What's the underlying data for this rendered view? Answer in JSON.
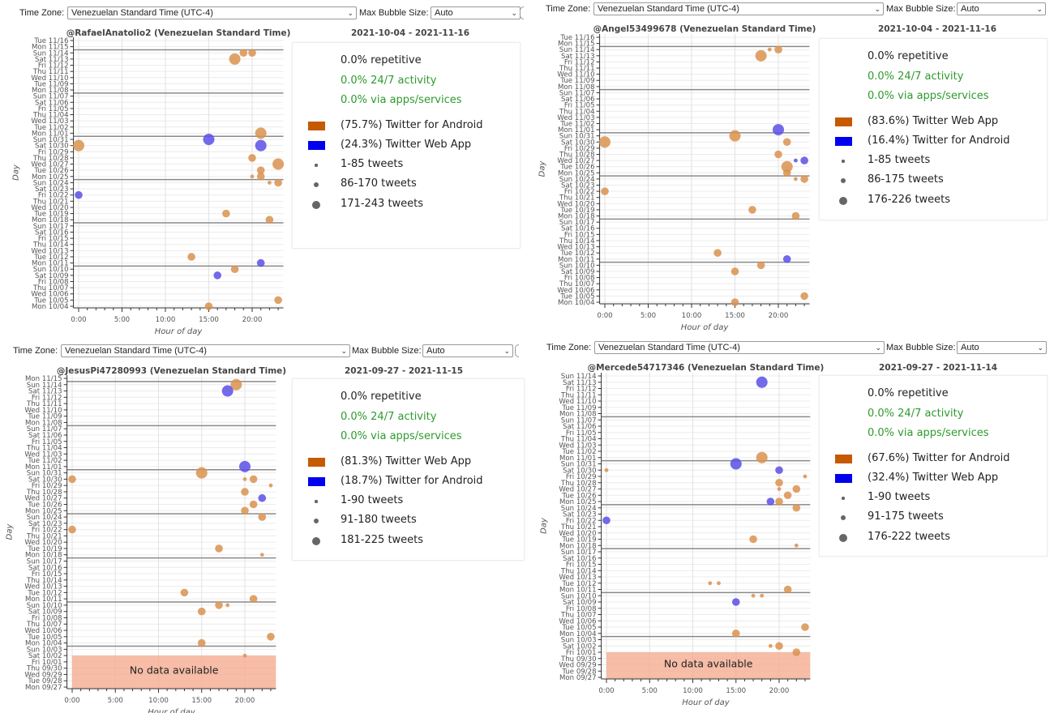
{
  "panels": [
    {
      "toolbar": {
        "timezone_label": "Time Zone:",
        "timezone_value": "Venezuelan Standard Time (UTC-4)",
        "bubble_label": "Max Bubble Size:",
        "bubble_value": "Auto"
      },
      "date_range": "2021-10-04 - 2021-11-16",
      "legend": {
        "stats": [
          {
            "text": "0.0% repetitive",
            "color": "#222222"
          },
          {
            "text": "0.0% 24/7 activity",
            "color": "#2e9a2e"
          },
          {
            "text": "0.0% via apps/services",
            "color": "#2e9a2e"
          }
        ],
        "sources": [
          {
            "label": "(75.7%) Twitter for Android",
            "color": "#c55a00"
          },
          {
            "label": "(24.3%) Twitter Web App",
            "color": "#0000ee"
          }
        ],
        "sizes": [
          "1-85 tweets",
          "86-170 tweets",
          "171-243 tweets"
        ]
      }
    },
    {
      "toolbar": {
        "timezone_label": "Time Zone:",
        "timezone_value": "Venezuelan Standard Time (UTC-4)",
        "bubble_label": "Max Bubble Size:",
        "bubble_value": "Auto"
      },
      "date_range": "2021-10-04 - 2021-11-16",
      "legend": {
        "stats": [
          {
            "text": "0.0% repetitive",
            "color": "#222222"
          },
          {
            "text": "0.0% 24/7 activity",
            "color": "#2e9a2e"
          },
          {
            "text": "0.0% via apps/services",
            "color": "#2e9a2e"
          }
        ],
        "sources": [
          {
            "label": "(83.6%) Twitter Web App",
            "color": "#c55a00"
          },
          {
            "label": "(16.4%) Twitter for Android",
            "color": "#0000ee"
          }
        ],
        "sizes": [
          "1-85 tweets",
          "86-175 tweets",
          "176-226 tweets"
        ]
      }
    },
    {
      "toolbar": {
        "timezone_label": "Time Zone:",
        "timezone_value": "Venezuelan Standard Time (UTC-4)",
        "bubble_label": "Max Bubble Size:",
        "bubble_value": "Auto"
      },
      "date_range": "2021-09-27 - 2021-11-15",
      "legend": {
        "stats": [
          {
            "text": "0.0% repetitive",
            "color": "#222222"
          },
          {
            "text": "0.0% 24/7 activity",
            "color": "#2e9a2e"
          },
          {
            "text": "0.0% via apps/services",
            "color": "#2e9a2e"
          }
        ],
        "sources": [
          {
            "label": "(81.3%) Twitter Web App",
            "color": "#c55a00"
          },
          {
            "label": "(18.7%) Twitter for Android",
            "color": "#0000ee"
          }
        ],
        "sizes": [
          "1-90 tweets",
          "91-180 tweets",
          "181-225 tweets"
        ]
      }
    },
    {
      "toolbar": {
        "timezone_label": "Time Zone:",
        "timezone_value": "Venezuelan Standard Time (UTC-4)",
        "bubble_label": "Max Bubble Size:",
        "bubble_value": "Auto"
      },
      "date_range": "2021-09-27 - 2021-11-14",
      "legend": {
        "stats": [
          {
            "text": "0.0% repetitive",
            "color": "#222222"
          },
          {
            "text": "0.0% 24/7 activity",
            "color": "#2e9a2e"
          },
          {
            "text": "0.0% via apps/services",
            "color": "#2e9a2e"
          }
        ],
        "sources": [
          {
            "label": "(67.6%) Twitter for Android",
            "color": "#c55a00"
          },
          {
            "label": "(32.4%) Twitter Web App",
            "color": "#0000ee"
          }
        ],
        "sizes": [
          "1-90 tweets",
          "91-175 tweets",
          "176-222 tweets"
        ]
      }
    }
  ],
  "chart_data": [
    {
      "type": "scatter",
      "title": "@RafaelAnatolio2 (Venezuelan Standard Time)",
      "xlabel": "Hour of day",
      "ylabel": "Day",
      "x_ticks": [
        "0:00",
        "5:00",
        "10:00",
        "15:00",
        "20:00"
      ],
      "xlim": [
        -0.6,
        23.6
      ],
      "point_format": [
        "day",
        "hour",
        "size_class(1-3)",
        "source_index"
      ],
      "y_categories": [
        "Mon 10/04",
        "Tue 10/05",
        "Wed 10/06",
        "Thu 10/07",
        "Fri 10/08",
        "Sat 10/09",
        "Sun 10/10",
        "Mon 10/11",
        "Tue 10/12",
        "Wed 10/13",
        "Thu 10/14",
        "Fri 10/15",
        "Sat 10/16",
        "Sun 10/17",
        "Mon 10/18",
        "Tue 10/19",
        "Wed 10/20",
        "Thu 10/21",
        "Fri 10/22",
        "Sat 10/23",
        "Sun 10/24",
        "Mon 10/25",
        "Tue 10/26",
        "Wed 10/27",
        "Thu 10/28",
        "Fri 10/29",
        "Sat 10/30",
        "Sun 10/31",
        "Mon 11/01",
        "Tue 11/02",
        "Wed 11/03",
        "Thu 11/04",
        "Fri 11/05",
        "Sat 11/06",
        "Sun 11/07",
        "Mon 11/08",
        "Tue 11/09",
        "Wed 11/10",
        "Thu 11/11",
        "Fri 11/12",
        "Sat 11/13",
        "Sun 11/14",
        "Mon 11/15",
        "Tue 11/16"
      ],
      "points": [
        [
          "11/14",
          19,
          2,
          0
        ],
        [
          "11/14",
          20,
          2,
          0
        ],
        [
          "11/13",
          18,
          3,
          0
        ],
        [
          "11/01",
          21,
          3,
          0
        ],
        [
          "10/31",
          15,
          3,
          1
        ],
        [
          "10/30",
          0,
          3,
          0
        ],
        [
          "10/30",
          21,
          3,
          1
        ],
        [
          "10/28",
          20,
          2,
          0
        ],
        [
          "10/27",
          23,
          3,
          0
        ],
        [
          "10/26",
          21,
          2,
          0
        ],
        [
          "10/25",
          20,
          1,
          0
        ],
        [
          "10/25",
          21,
          2,
          0
        ],
        [
          "10/24",
          22,
          1,
          0
        ],
        [
          "10/24",
          23,
          2,
          0
        ],
        [
          "10/22",
          0,
          2,
          1
        ],
        [
          "10/19",
          17,
          2,
          0
        ],
        [
          "10/18",
          22,
          2,
          0
        ],
        [
          "10/12",
          13,
          2,
          0
        ],
        [
          "10/11",
          21,
          2,
          1
        ],
        [
          "10/10",
          18,
          2,
          0
        ],
        [
          "10/09",
          16,
          2,
          1
        ],
        [
          "10/05",
          23,
          2,
          0
        ],
        [
          "10/04",
          15,
          2,
          0
        ]
      ]
    },
    {
      "type": "scatter",
      "title": "@Angel53499678 (Venezuelan Standard Time)",
      "xlabel": "Hour of day",
      "ylabel": "Day",
      "x_ticks": [
        "0:00",
        "5:00",
        "10:00",
        "15:00",
        "20:00"
      ],
      "xlim": [
        -0.6,
        23.6
      ],
      "point_format": [
        "day",
        "hour",
        "size_class(1-3)",
        "source_index"
      ],
      "y_categories": [
        "Mon 10/04",
        "Tue 10/05",
        "Wed 10/06",
        "Thu 10/07",
        "Fri 10/08",
        "Sat 10/09",
        "Sun 10/10",
        "Mon 10/11",
        "Tue 10/12",
        "Wed 10/13",
        "Thu 10/14",
        "Fri 10/15",
        "Sat 10/16",
        "Sun 10/17",
        "Mon 10/18",
        "Tue 10/19",
        "Wed 10/20",
        "Thu 10/21",
        "Fri 10/22",
        "Sat 10/23",
        "Sun 10/24",
        "Mon 10/25",
        "Tue 10/26",
        "Wed 10/27",
        "Thu 10/28",
        "Fri 10/29",
        "Sat 10/30",
        "Sun 10/31",
        "Mon 11/01",
        "Tue 11/02",
        "Wed 11/03",
        "Thu 11/04",
        "Fri 11/05",
        "Sat 11/06",
        "Sun 11/07",
        "Mon 11/08",
        "Tue 11/09",
        "Wed 11/10",
        "Thu 11/11",
        "Fri 11/12",
        "Sat 11/13",
        "Sun 11/14",
        "Mon 11/15",
        "Tue 11/16"
      ],
      "points": [
        [
          "11/14",
          19,
          1,
          0
        ],
        [
          "11/14",
          20,
          2,
          0
        ],
        [
          "11/13",
          18,
          3,
          0
        ],
        [
          "11/01",
          20,
          3,
          1
        ],
        [
          "10/31",
          15,
          3,
          0
        ],
        [
          "10/30",
          0,
          3,
          0
        ],
        [
          "10/30",
          21,
          2,
          0
        ],
        [
          "10/28",
          20,
          2,
          0
        ],
        [
          "10/27",
          22,
          1,
          1
        ],
        [
          "10/27",
          23,
          2,
          1
        ],
        [
          "10/26",
          21,
          3,
          0
        ],
        [
          "10/25",
          21,
          2,
          0
        ],
        [
          "10/24",
          22,
          1,
          0
        ],
        [
          "10/24",
          23,
          2,
          0
        ],
        [
          "10/22",
          0,
          2,
          0
        ],
        [
          "10/19",
          17,
          2,
          0
        ],
        [
          "10/18",
          22,
          2,
          0
        ],
        [
          "10/12",
          13,
          2,
          0
        ],
        [
          "10/11",
          21,
          2,
          1
        ],
        [
          "10/10",
          18,
          2,
          0
        ],
        [
          "10/09",
          15,
          2,
          0
        ],
        [
          "10/05",
          23,
          2,
          0
        ],
        [
          "10/04",
          15,
          2,
          0
        ]
      ]
    },
    {
      "type": "scatter",
      "title": "@JesusPi47280993 (Venezuelan Standard Time)",
      "xlabel": "Hour of day",
      "ylabel": "Day",
      "x_ticks": [
        "0:00",
        "5:00",
        "10:00",
        "15:00",
        "20:00"
      ],
      "xlim": [
        -0.6,
        23.6
      ],
      "no_data_label": "No data available",
      "no_data_through": "10/02",
      "point_format": [
        "day",
        "hour",
        "size_class(1-3)",
        "source_index"
      ],
      "y_categories": [
        "Mon 09/27",
        "Tue 09/28",
        "Wed 09/29",
        "Thu 09/30",
        "Fri 10/01",
        "Sat 10/02",
        "Sun 10/03",
        "Mon 10/04",
        "Tue 10/05",
        "Wed 10/06",
        "Thu 10/07",
        "Fri 10/08",
        "Sat 10/09",
        "Sun 10/10",
        "Mon 10/11",
        "Tue 10/12",
        "Wed 10/13",
        "Thu 10/14",
        "Fri 10/15",
        "Sat 10/16",
        "Sun 10/17",
        "Mon 10/18",
        "Tue 10/19",
        "Wed 10/20",
        "Thu 10/21",
        "Fri 10/22",
        "Sat 10/23",
        "Sun 10/24",
        "Mon 10/25",
        "Tue 10/26",
        "Wed 10/27",
        "Thu 10/28",
        "Fri 10/29",
        "Sat 10/30",
        "Sun 10/31",
        "Mon 11/01",
        "Tue 11/02",
        "Wed 11/03",
        "Thu 11/04",
        "Fri 11/05",
        "Sat 11/06",
        "Sun 11/07",
        "Mon 11/08",
        "Tue 11/09",
        "Wed 11/10",
        "Thu 11/11",
        "Fri 11/12",
        "Sat 11/13",
        "Sun 11/14",
        "Mon 11/15"
      ],
      "points": [
        [
          "11/14",
          19,
          3,
          0
        ],
        [
          "11/13",
          18,
          3,
          1
        ],
        [
          "11/01",
          20,
          3,
          1
        ],
        [
          "10/31",
          15,
          3,
          0
        ],
        [
          "10/30",
          0,
          2,
          0
        ],
        [
          "10/30",
          20,
          1,
          0
        ],
        [
          "10/30",
          21,
          2,
          0
        ],
        [
          "10/29",
          23,
          1,
          0
        ],
        [
          "10/28",
          20,
          2,
          0
        ],
        [
          "10/27",
          22,
          2,
          1
        ],
        [
          "10/26",
          21,
          2,
          0
        ],
        [
          "10/25",
          20,
          2,
          0
        ],
        [
          "10/24",
          22,
          2,
          0
        ],
        [
          "10/22",
          0,
          2,
          0
        ],
        [
          "10/19",
          17,
          2,
          0
        ],
        [
          "10/18",
          22,
          1,
          0
        ],
        [
          "10/12",
          13,
          2,
          0
        ],
        [
          "10/11",
          21,
          2,
          0
        ],
        [
          "10/10",
          17,
          2,
          0
        ],
        [
          "10/10",
          18,
          1,
          0
        ],
        [
          "10/09",
          15,
          2,
          0
        ],
        [
          "10/05",
          23,
          2,
          0
        ],
        [
          "10/04",
          15,
          2,
          0
        ],
        [
          "10/02",
          20,
          1,
          0
        ]
      ]
    },
    {
      "type": "scatter",
      "title": "@Mercede54717346 (Venezuelan Standard Time)",
      "xlabel": "Hour of day",
      "ylabel": "Day",
      "x_ticks": [
        "0:00",
        "5:00",
        "10:00",
        "15:00",
        "20:00"
      ],
      "xlim": [
        -0.6,
        23.6
      ],
      "no_data_label": "No data available",
      "no_data_through": "10/01",
      "point_format": [
        "day",
        "hour",
        "size_class(1-3)",
        "source_index"
      ],
      "y_categories": [
        "Mon 09/27",
        "Tue 09/28",
        "Wed 09/29",
        "Thu 09/30",
        "Fri 10/01",
        "Sat 10/02",
        "Sun 10/03",
        "Mon 10/04",
        "Tue 10/05",
        "Wed 10/06",
        "Thu 10/07",
        "Fri 10/08",
        "Sat 10/09",
        "Sun 10/10",
        "Mon 10/11",
        "Tue 10/12",
        "Wed 10/13",
        "Thu 10/14",
        "Fri 10/15",
        "Sat 10/16",
        "Sun 10/17",
        "Mon 10/18",
        "Tue 10/19",
        "Wed 10/20",
        "Thu 10/21",
        "Fri 10/22",
        "Sat 10/23",
        "Sun 10/24",
        "Mon 10/25",
        "Tue 10/26",
        "Wed 10/27",
        "Thu 10/28",
        "Fri 10/29",
        "Sat 10/30",
        "Sun 10/31",
        "Mon 11/01",
        "Tue 11/02",
        "Wed 11/03",
        "Thu 11/04",
        "Fri 11/05",
        "Sat 11/06",
        "Sun 11/07",
        "Mon 11/08",
        "Tue 11/09",
        "Wed 11/10",
        "Thu 11/11",
        "Fri 11/12",
        "Sat 11/13",
        "Sun 11/14"
      ],
      "points": [
        [
          "11/13",
          18,
          3,
          1
        ],
        [
          "11/01",
          18,
          3,
          0
        ],
        [
          "10/31",
          15,
          3,
          1
        ],
        [
          "10/30",
          0,
          1,
          0
        ],
        [
          "10/30",
          20,
          2,
          1
        ],
        [
          "10/29",
          23,
          1,
          0
        ],
        [
          "10/28",
          20,
          2,
          0
        ],
        [
          "10/27",
          20,
          1,
          0
        ],
        [
          "10/27",
          22,
          2,
          0
        ],
        [
          "10/26",
          21,
          2,
          0
        ],
        [
          "10/25",
          19,
          2,
          1
        ],
        [
          "10/25",
          20,
          2,
          0
        ],
        [
          "10/24",
          22,
          2,
          0
        ],
        [
          "10/22",
          0,
          2,
          1
        ],
        [
          "10/19",
          17,
          2,
          0
        ],
        [
          "10/18",
          22,
          1,
          0
        ],
        [
          "10/12",
          12,
          1,
          0
        ],
        [
          "10/12",
          13,
          1,
          0
        ],
        [
          "10/11",
          21,
          2,
          0
        ],
        [
          "10/10",
          17,
          1,
          0
        ],
        [
          "10/10",
          18,
          1,
          0
        ],
        [
          "10/09",
          15,
          2,
          1
        ],
        [
          "10/05",
          23,
          2,
          0
        ],
        [
          "10/04",
          15,
          2,
          0
        ],
        [
          "10/02",
          19,
          1,
          0
        ],
        [
          "10/02",
          20,
          2,
          0
        ],
        [
          "10/01",
          22,
          2,
          0
        ]
      ]
    }
  ],
  "bubble_colors": [
    "#d9924f",
    "#5b4fe6"
  ]
}
